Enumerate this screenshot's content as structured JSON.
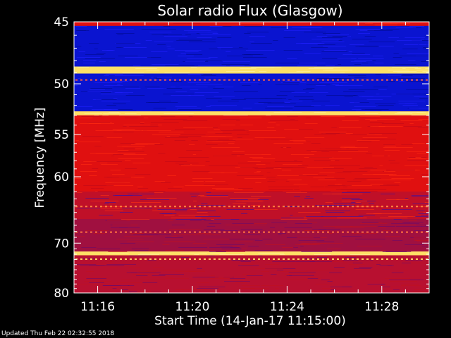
{
  "chart_data": {
    "type": "heatmap",
    "title": "Solar radio Flux (Glasgow)",
    "xlabel": "Start Time (14-Jan-17 11:15:00)",
    "ylabel": "Frequency [MHz]",
    "x_ticks": [
      "11:16",
      "11:20",
      "11:24",
      "11:28"
    ],
    "x_tick_values_min": [
      1,
      5,
      9,
      13
    ],
    "x_range_min": [
      0,
      15
    ],
    "y_ticks": [
      45,
      50,
      55,
      60,
      70,
      80
    ],
    "y_range_mhz": [
      45,
      80
    ],
    "y_scale": "reciprocal",
    "bands": [
      {
        "from": 45,
        "to": 45.3,
        "level": "high"
      },
      {
        "from": 45.3,
        "to": 48.5,
        "level": "low"
      },
      {
        "from": 48.5,
        "to": 49.1,
        "level": "peak"
      },
      {
        "from": 49.1,
        "to": 52.6,
        "level": "low"
      },
      {
        "from": 52.6,
        "to": 53.0,
        "level": "peak"
      },
      {
        "from": 53.0,
        "to": 62.0,
        "level": "high"
      },
      {
        "from": 62.0,
        "to": 66.0,
        "level": "mixed"
      },
      {
        "from": 66.0,
        "to": 71.5,
        "level": "mid"
      },
      {
        "from": 71.5,
        "to": 72.2,
        "level": "peak"
      },
      {
        "from": 72.2,
        "to": 80.0,
        "level": "mid-high"
      }
    ],
    "colors": {
      "peak": "#ffe066",
      "high": "#e01010",
      "mid": "#a01040",
      "low": "#0a14d0",
      "background": "#000000"
    }
  },
  "footer": "Updated Thu Feb 22 02:32:55 2018"
}
